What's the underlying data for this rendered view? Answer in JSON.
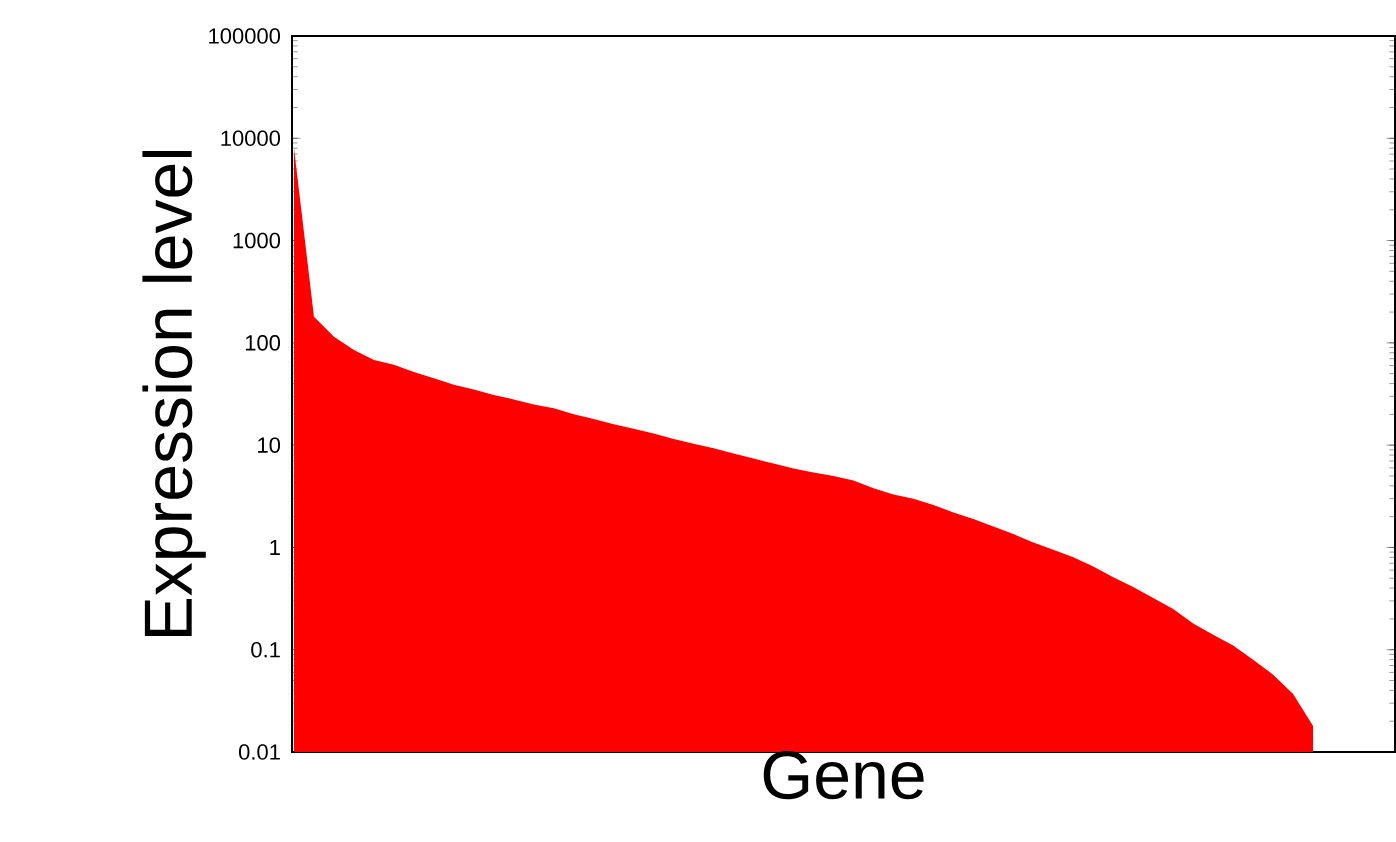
{
  "chart_data": {
    "type": "area",
    "xlabel": "Gene",
    "ylabel": "Expression level",
    "log": "y",
    "ylim": [
      0.01,
      100000
    ],
    "yticks": [
      0.01,
      0.1,
      1,
      10,
      100,
      1000,
      10000,
      100000
    ],
    "grid": false,
    "color": "#ff0000",
    "categories": [
      null,
      null,
      null,
      null,
      null,
      null,
      null,
      null,
      null,
      null,
      null,
      null,
      null,
      null,
      null,
      null,
      null,
      null,
      null,
      null,
      null,
      null,
      null,
      null,
      null,
      null,
      null,
      null,
      null,
      null,
      null,
      null,
      null,
      null,
      null,
      null,
      null,
      null,
      null,
      null,
      null,
      null,
      null,
      null,
      null,
      null,
      null,
      null,
      null,
      null,
      null,
      null
    ],
    "values": [
      8000,
      180,
      115,
      85,
      68,
      61,
      52,
      45,
      39,
      35,
      31,
      28,
      25,
      23,
      20,
      18,
      16,
      14.5,
      13,
      11.5,
      10.3,
      9.3,
      8.3,
      7.4,
      6.6,
      5.9,
      5.4,
      5.0,
      4.5,
      3.8,
      3.3,
      3.0,
      2.6,
      2.2,
      1.9,
      1.6,
      1.35,
      1.12,
      0.95,
      0.8,
      0.65,
      0.51,
      0.41,
      0.32,
      0.25,
      0.18,
      0.14,
      0.11,
      0.08,
      0.057,
      0.037,
      0.018
    ]
  }
}
